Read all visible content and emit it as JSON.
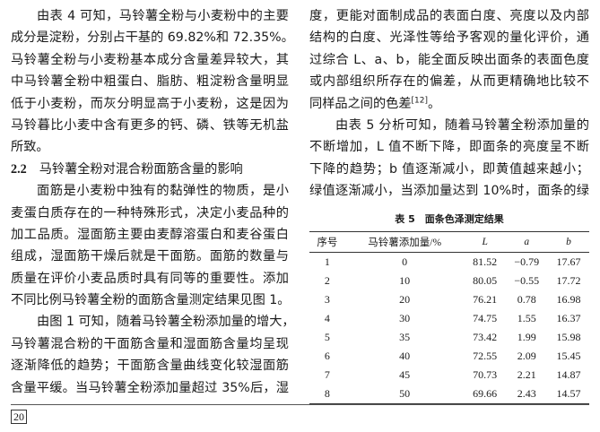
{
  "left_column": [
    {
      "t": "由表 4 可知，马铃薯全粉与小麦粉中的主要",
      "type": "ind"
    },
    {
      "t": "成分是淀粉，分别占干基的 69.82%和 72.35%。",
      "type": ""
    },
    {
      "t": "马铃薯全粉与小麦粉基本成分含量差异较大，其",
      "type": ""
    },
    {
      "t": "中马铃薯全粉中粗蛋白、脂肪、粗淀粉含量明显",
      "type": ""
    },
    {
      "t": "低于小麦粉，而灰分明显高于小麦粉，这是因为",
      "type": ""
    },
    {
      "t": "马铃暮比小麦中含有更多的钙、磷、铁等无机盐",
      "type": ""
    },
    {
      "t": "所致。",
      "type": "last"
    },
    {
      "num": "2.2",
      "t": "马铃薯全粉对混合粉面筋含量的影响",
      "type": "head"
    },
    {
      "t": "面筋是小麦粉中独有的黏弹性的物质，是小",
      "type": "ind"
    },
    {
      "t": "麦蛋白质存在的一种特殊形式，决定小麦品种的",
      "type": ""
    },
    {
      "t": "加工品质。湿面筋主要由麦醇溶蛋白和麦谷蛋白",
      "type": ""
    },
    {
      "t": "组成，湿面筋干燥后就是干面筋。面筋的数量与",
      "type": ""
    },
    {
      "t": "质量在评价小麦品质时具有同等的重要性。添加",
      "type": ""
    },
    {
      "t": "不同比例马铃薯全粉的面筋含量测定结果见图 1。",
      "type": ""
    },
    {
      "t": "由图 1 可知，随着马铃薯全粉添加量的增大，",
      "type": "ind"
    },
    {
      "t": "马铃薯混合粉的干面筋含量和湿面筋含量均呈现",
      "type": ""
    },
    {
      "t": "逐渐降低的趋势；干面筋含量曲线变化较湿面筋",
      "type": ""
    },
    {
      "t": "含量平缓。当马铃薯全粉添加量超过 35%后，湿",
      "type": ""
    }
  ],
  "right_column": [
    {
      "t": "度，更能对面制成品的表面白度、亮度以及内部",
      "type": ""
    },
    {
      "t": "结构的白度、光泽性等给予客观的量化评价，通",
      "type": ""
    },
    {
      "t": "过综合 L、a、b，能全面反映出面条的表面色度",
      "type": ""
    },
    {
      "t": "或内部组织所存在的偏差，从而更精确地比较不",
      "type": ""
    },
    {
      "t": "同样品之间的色差",
      "sup": "[12]",
      "after": "。",
      "type": "last"
    },
    {
      "t": "由表 5 分析可知，随着马铃薯全粉添加量的",
      "type": "ind"
    },
    {
      "t": "不断增加，L 值不断下降，即面条的亮度呈不断",
      "type": ""
    },
    {
      "t": "下降的趋势；b 值逐渐减小，即黄值越来越小；",
      "type": ""
    },
    {
      "t": "绿值逐渐减小，当添加量达到 10%时，面条的绿",
      "type": ""
    }
  ],
  "table": {
    "title": "表 5　面条色泽测定结果",
    "headers": [
      "序号",
      "马铃薯添加量/%",
      "L",
      "a",
      "b"
    ],
    "rows": [
      [
        "1",
        "0",
        "81.52",
        "−0.79",
        "17.67"
      ],
      [
        "2",
        "10",
        "80.05",
        "−0.55",
        "17.72"
      ],
      [
        "3",
        "20",
        "76.21",
        "0.78",
        "16.98"
      ],
      [
        "4",
        "30",
        "74.75",
        "1.55",
        "16.37"
      ],
      [
        "5",
        "35",
        "73.42",
        "1.99",
        "15.98"
      ],
      [
        "6",
        "40",
        "72.55",
        "2.09",
        "15.45"
      ],
      [
        "7",
        "45",
        "70.73",
        "2.21",
        "14.87"
      ],
      [
        "8",
        "50",
        "69.66",
        "2.43",
        "14.57"
      ]
    ]
  },
  "footer": {
    "page_number": "20"
  }
}
